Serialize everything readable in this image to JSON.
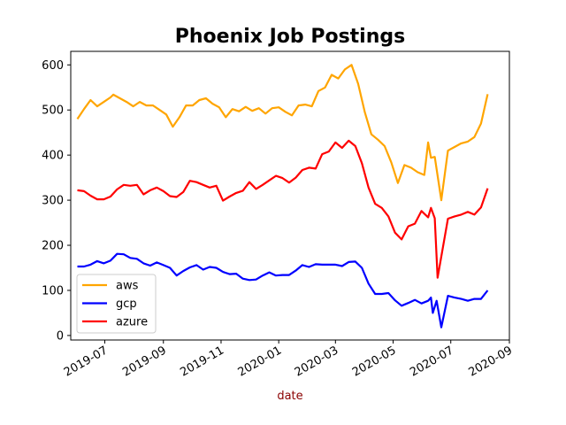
{
  "chart_data": {
    "type": "line",
    "title": "Phoenix Job Postings",
    "xlabel": "date",
    "xlabel_color": "#8b0000",
    "ylabel": "",
    "x_axis": "date",
    "xlim": [
      "2019-05-26",
      "2020-09-01"
    ],
    "ylim": [
      -10,
      630
    ],
    "x_ticks": [
      {
        "date": "2019-07-01",
        "label": "2019-07"
      },
      {
        "date": "2019-09-01",
        "label": "2019-09"
      },
      {
        "date": "2019-11-01",
        "label": "2019-11"
      },
      {
        "date": "2020-01-01",
        "label": "2020-01"
      },
      {
        "date": "2020-03-01",
        "label": "2020-03"
      },
      {
        "date": "2020-05-01",
        "label": "2020-05"
      },
      {
        "date": "2020-07-01",
        "label": "2020-07"
      },
      {
        "date": "2020-09-01",
        "label": "2020-09"
      }
    ],
    "y_ticks": [
      0,
      100,
      200,
      300,
      400,
      500,
      600
    ],
    "grid": false,
    "legend": "lower-left",
    "series": [
      {
        "name": "aws",
        "color": "#ffa500",
        "points": [
          [
            "2019-06-02",
            480
          ],
          [
            "2019-06-09",
            502
          ],
          [
            "2019-06-16",
            522
          ],
          [
            "2019-06-23",
            508
          ],
          [
            "2019-06-30",
            518
          ],
          [
            "2019-07-07",
            528
          ],
          [
            "2019-07-10",
            534
          ],
          [
            "2019-07-17",
            526
          ],
          [
            "2019-07-24",
            518
          ],
          [
            "2019-07-31",
            508
          ],
          [
            "2019-08-07",
            518
          ],
          [
            "2019-08-14",
            510
          ],
          [
            "2019-08-21",
            510
          ],
          [
            "2019-08-28",
            500
          ],
          [
            "2019-09-04",
            490
          ],
          [
            "2019-09-11",
            463
          ],
          [
            "2019-09-18",
            484
          ],
          [
            "2019-09-25",
            510
          ],
          [
            "2019-10-02",
            510
          ],
          [
            "2019-10-09",
            522
          ],
          [
            "2019-10-16",
            526
          ],
          [
            "2019-10-23",
            514
          ],
          [
            "2019-10-30",
            506
          ],
          [
            "2019-11-06",
            484
          ],
          [
            "2019-11-13",
            502
          ],
          [
            "2019-11-20",
            497
          ],
          [
            "2019-11-27",
            507
          ],
          [
            "2019-12-04",
            498
          ],
          [
            "2019-12-11",
            504
          ],
          [
            "2019-12-18",
            492
          ],
          [
            "2019-12-25",
            504
          ],
          [
            "2020-01-01",
            506
          ],
          [
            "2020-01-08",
            496
          ],
          [
            "2020-01-15",
            488
          ],
          [
            "2020-01-22",
            510
          ],
          [
            "2020-01-29",
            512
          ],
          [
            "2020-02-05",
            508
          ],
          [
            "2020-02-12",
            542
          ],
          [
            "2020-02-19",
            550
          ],
          [
            "2020-02-26",
            578
          ],
          [
            "2020-03-04",
            570
          ],
          [
            "2020-03-11",
            590
          ],
          [
            "2020-03-18",
            600
          ],
          [
            "2020-03-25",
            558
          ],
          [
            "2020-04-01",
            496
          ],
          [
            "2020-04-08",
            446
          ],
          [
            "2020-04-15",
            434
          ],
          [
            "2020-04-22",
            420
          ],
          [
            "2020-04-29",
            384
          ],
          [
            "2020-05-06",
            338
          ],
          [
            "2020-05-13",
            378
          ],
          [
            "2020-05-20",
            372
          ],
          [
            "2020-05-27",
            362
          ],
          [
            "2020-06-03",
            356
          ],
          [
            "2020-06-07",
            428
          ],
          [
            "2020-06-10",
            394
          ],
          [
            "2020-06-14",
            396
          ],
          [
            "2020-06-21",
            300
          ],
          [
            "2020-06-28",
            410
          ],
          [
            "2020-07-05",
            418
          ],
          [
            "2020-07-12",
            426
          ],
          [
            "2020-07-19",
            430
          ],
          [
            "2020-07-26",
            440
          ],
          [
            "2020-08-02",
            470
          ],
          [
            "2020-08-09",
            535
          ]
        ]
      },
      {
        "name": "gcp",
        "color": "#0000ff",
        "points": [
          [
            "2019-06-02",
            153
          ],
          [
            "2019-06-09",
            153
          ],
          [
            "2019-06-16",
            157
          ],
          [
            "2019-06-23",
            165
          ],
          [
            "2019-06-30",
            160
          ],
          [
            "2019-07-07",
            166
          ],
          [
            "2019-07-14",
            181
          ],
          [
            "2019-07-21",
            180
          ],
          [
            "2019-07-28",
            172
          ],
          [
            "2019-08-04",
            170
          ],
          [
            "2019-08-11",
            160
          ],
          [
            "2019-08-18",
            155
          ],
          [
            "2019-08-25",
            162
          ],
          [
            "2019-09-01",
            156
          ],
          [
            "2019-09-08",
            150
          ],
          [
            "2019-09-15",
            133
          ],
          [
            "2019-09-22",
            143
          ],
          [
            "2019-09-29",
            151
          ],
          [
            "2019-10-06",
            156
          ],
          [
            "2019-10-13",
            146
          ],
          [
            "2019-10-20",
            152
          ],
          [
            "2019-10-27",
            150
          ],
          [
            "2019-11-03",
            141
          ],
          [
            "2019-11-10",
            136
          ],
          [
            "2019-11-17",
            137
          ],
          [
            "2019-11-24",
            126
          ],
          [
            "2019-12-01",
            123
          ],
          [
            "2019-12-08",
            124
          ],
          [
            "2019-12-15",
            133
          ],
          [
            "2019-12-22",
            140
          ],
          [
            "2019-12-29",
            133
          ],
          [
            "2020-01-05",
            134
          ],
          [
            "2020-01-12",
            134
          ],
          [
            "2020-01-19",
            144
          ],
          [
            "2020-01-26",
            156
          ],
          [
            "2020-02-02",
            152
          ],
          [
            "2020-02-09",
            158
          ],
          [
            "2020-02-16",
            157
          ],
          [
            "2020-02-23",
            157
          ],
          [
            "2020-03-01",
            157
          ],
          [
            "2020-03-08",
            154
          ],
          [
            "2020-03-15",
            163
          ],
          [
            "2020-03-22",
            164
          ],
          [
            "2020-03-29",
            150
          ],
          [
            "2020-04-05",
            115
          ],
          [
            "2020-04-12",
            92
          ],
          [
            "2020-04-19",
            92
          ],
          [
            "2020-04-26",
            94
          ],
          [
            "2020-05-03",
            78
          ],
          [
            "2020-05-10",
            66
          ],
          [
            "2020-05-17",
            72
          ],
          [
            "2020-05-24",
            79
          ],
          [
            "2020-05-31",
            71
          ],
          [
            "2020-06-07",
            77
          ],
          [
            "2020-06-10",
            84
          ],
          [
            "2020-06-12",
            50
          ],
          [
            "2020-06-16",
            77
          ],
          [
            "2020-06-21",
            18
          ],
          [
            "2020-06-28",
            88
          ],
          [
            "2020-07-05",
            84
          ],
          [
            "2020-07-12",
            81
          ],
          [
            "2020-07-19",
            77
          ],
          [
            "2020-07-26",
            81
          ],
          [
            "2020-08-02",
            81
          ],
          [
            "2020-08-09",
            100
          ]
        ]
      },
      {
        "name": "azure",
        "color": "#ff0000",
        "points": [
          [
            "2019-06-02",
            322
          ],
          [
            "2019-06-09",
            320
          ],
          [
            "2019-06-16",
            310
          ],
          [
            "2019-06-23",
            302
          ],
          [
            "2019-06-30",
            302
          ],
          [
            "2019-07-07",
            308
          ],
          [
            "2019-07-14",
            324
          ],
          [
            "2019-07-21",
            334
          ],
          [
            "2019-07-28",
            332
          ],
          [
            "2019-08-04",
            334
          ],
          [
            "2019-08-11",
            313
          ],
          [
            "2019-08-18",
            322
          ],
          [
            "2019-08-25",
            328
          ],
          [
            "2019-09-01",
            320
          ],
          [
            "2019-09-08",
            309
          ],
          [
            "2019-09-15",
            307
          ],
          [
            "2019-09-22",
            318
          ],
          [
            "2019-09-29",
            343
          ],
          [
            "2019-10-06",
            340
          ],
          [
            "2019-10-13",
            334
          ],
          [
            "2019-10-20",
            328
          ],
          [
            "2019-10-27",
            332
          ],
          [
            "2019-11-03",
            299
          ],
          [
            "2019-11-10",
            308
          ],
          [
            "2019-11-17",
            316
          ],
          [
            "2019-11-24",
            321
          ],
          [
            "2019-12-01",
            340
          ],
          [
            "2019-12-08",
            325
          ],
          [
            "2019-12-15",
            334
          ],
          [
            "2019-12-22",
            344
          ],
          [
            "2019-12-29",
            354
          ],
          [
            "2020-01-05",
            349
          ],
          [
            "2020-01-12",
            339
          ],
          [
            "2020-01-19",
            350
          ],
          [
            "2020-01-26",
            367
          ],
          [
            "2020-02-02",
            372
          ],
          [
            "2020-02-09",
            370
          ],
          [
            "2020-02-16",
            402
          ],
          [
            "2020-02-23",
            408
          ],
          [
            "2020-03-01",
            428
          ],
          [
            "2020-03-08",
            416
          ],
          [
            "2020-03-15",
            432
          ],
          [
            "2020-03-22",
            420
          ],
          [
            "2020-03-29",
            382
          ],
          [
            "2020-04-05",
            328
          ],
          [
            "2020-04-12",
            292
          ],
          [
            "2020-04-19",
            283
          ],
          [
            "2020-04-26",
            264
          ],
          [
            "2020-05-03",
            228
          ],
          [
            "2020-05-10",
            213
          ],
          [
            "2020-05-17",
            242
          ],
          [
            "2020-05-24",
            248
          ],
          [
            "2020-05-31",
            276
          ],
          [
            "2020-06-07",
            262
          ],
          [
            "2020-06-10",
            283
          ],
          [
            "2020-06-14",
            260
          ],
          [
            "2020-06-17",
            128
          ],
          [
            "2020-06-28",
            259
          ],
          [
            "2020-07-05",
            264
          ],
          [
            "2020-07-12",
            268
          ],
          [
            "2020-07-19",
            274
          ],
          [
            "2020-07-26",
            268
          ],
          [
            "2020-08-02",
            284
          ],
          [
            "2020-08-09",
            326
          ]
        ]
      }
    ]
  }
}
